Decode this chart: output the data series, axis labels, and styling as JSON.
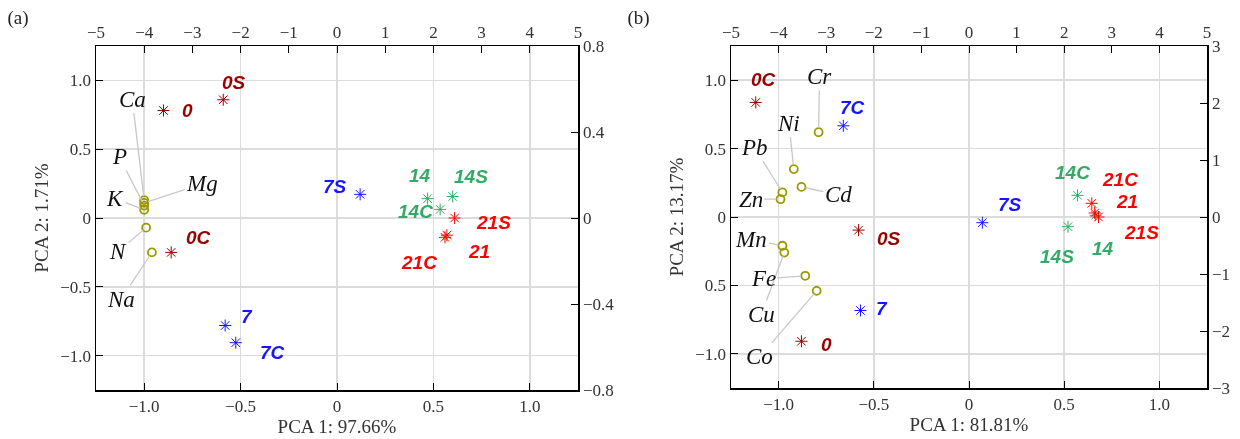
{
  "chart_data": [
    {
      "type": "scatter",
      "title": "(a)",
      "xlabel": "PCA 1: 97.66%",
      "ylabel": "PCA 2: 1.71%",
      "grid": true,
      "legend": false,
      "xlim": [
        -1.25,
        1.25
      ],
      "xticks": [
        {
          "value": -1,
          "label": "−1.0"
        },
        {
          "value": -0.5,
          "label": "−0.5"
        },
        {
          "value": 0,
          "label": "0"
        },
        {
          "value": 0.5,
          "label": "0.5"
        },
        {
          "value": 1,
          "label": "1.0"
        }
      ],
      "ylim": [
        -1.25,
        1.25
      ],
      "yticks": [
        {
          "value": -1,
          "label": "−1.0"
        },
        {
          "value": -0.5,
          "label": "−0.5"
        },
        {
          "value": 0,
          "label": "0"
        },
        {
          "value": 0.5,
          "label": "0.5"
        },
        {
          "value": 1,
          "label": "1.0"
        }
      ],
      "x2lim": [
        -5,
        5
      ],
      "x2ticks": [
        {
          "value": -5,
          "label": "−5"
        },
        {
          "value": -4,
          "label": "−4"
        },
        {
          "value": -3,
          "label": "−3"
        },
        {
          "value": -2,
          "label": "−2"
        },
        {
          "value": -1,
          "label": "−1"
        },
        0,
        1,
        2,
        3,
        4,
        5
      ],
      "y2lim": [
        -0.8,
        0.8
      ],
      "y2ticks": [
        {
          "value": -0.8,
          "label": "−0.8"
        },
        {
          "value": -0.4,
          "label": "−0.4"
        },
        0,
        0.4,
        0.8
      ],
      "series": [
        {
          "name": "Ca",
          "color": "#999900",
          "marker": "circle",
          "x": [
            -1.0
          ],
          "values": [
            0.13
          ]
        },
        {
          "name": "Mg",
          "color": "#999900",
          "marker": "circle",
          "x": [
            -1.0
          ],
          "values": [
            0.11
          ]
        },
        {
          "name": "P",
          "color": "#999900",
          "marker": "circle",
          "x": [
            -1.0
          ],
          "values": [
            0.09
          ]
        },
        {
          "name": "K",
          "color": "#999900",
          "marker": "circle",
          "x": [
            -1.0
          ],
          "values": [
            0.06
          ]
        },
        {
          "name": "N",
          "color": "#999900",
          "marker": "circle",
          "x": [
            -0.99
          ],
          "values": [
            -0.07
          ]
        },
        {
          "name": "Na",
          "color": "#999900",
          "marker": "circle",
          "x": [
            -0.96
          ],
          "values": [
            -0.25
          ]
        },
        {
          "name": "0",
          "color": "#990000",
          "marker": "cross",
          "axis": "y2",
          "x": [
            -0.9
          ],
          "values": [
            0.5
          ]
        },
        {
          "name": "0S",
          "color": "#990000",
          "marker": "cross",
          "axis": "y2",
          "x": [
            -0.59
          ],
          "values": [
            0.55
          ]
        },
        {
          "name": "0C",
          "color": "#990000",
          "marker": "cross",
          "axis": "y2",
          "x": [
            -0.86
          ],
          "values": [
            -0.16
          ]
        },
        {
          "name": "7",
          "color": "#1515ff",
          "marker": "cross",
          "axis": "y2",
          "x": [
            -0.58
          ],
          "values": [
            -0.5
          ]
        },
        {
          "name": "7C",
          "color": "#1515ff",
          "marker": "cross",
          "axis": "y2",
          "x": [
            -0.525
          ],
          "values": [
            -0.58
          ]
        },
        {
          "name": "7S",
          "color": "#1515ff",
          "marker": "cross",
          "axis": "y2",
          "x": [
            0.12
          ],
          "values": [
            0.11
          ]
        },
        {
          "name": "14",
          "color": "#33aa66",
          "marker": "cross",
          "axis": "y2",
          "x": [
            0.47
          ],
          "values": [
            0.09
          ]
        },
        {
          "name": "14S",
          "color": "#33aa66",
          "marker": "cross",
          "axis": "y2",
          "x": [
            0.6
          ],
          "values": [
            0.1
          ]
        },
        {
          "name": "14C",
          "color": "#33aa66",
          "marker": "cross",
          "axis": "y2",
          "x": [
            0.535
          ],
          "values": [
            0.04
          ]
        },
        {
          "name": "21S",
          "color": "#ff0000",
          "marker": "cross",
          "axis": "y2",
          "x": [
            0.61
          ],
          "values": [
            0.0
          ]
        },
        {
          "name": "21",
          "color": "#ff0000",
          "marker": "cross",
          "axis": "y2",
          "x": [
            0.57
          ],
          "values": [
            -0.08
          ]
        },
        {
          "name": "21C",
          "color": "#ff0000",
          "marker": "cross",
          "axis": "y2",
          "x": [
            0.56
          ],
          "values": [
            -0.09
          ]
        }
      ]
    },
    {
      "type": "scatter",
      "title": "(b)",
      "xlabel": "PCA 1: 81.81%",
      "ylabel": "PCA 2: 13.17%",
      "grid": true,
      "legend": false,
      "xlim": [
        -1.25,
        1.25
      ],
      "xticks": [
        {
          "value": -1,
          "label": "−1.0"
        },
        {
          "value": -0.5,
          "label": "−0.5"
        },
        {
          "value": 0,
          "label": "0"
        },
        {
          "value": 0.5,
          "label": "0.5"
        },
        {
          "value": 1,
          "label": "1.0"
        }
      ],
      "ylim": [
        -1.25,
        1.25
      ],
      "yticks": [
        {
          "value": -1,
          "label": "−1.0"
        },
        {
          "value": -0.5,
          "label": "0.5"
        },
        {
          "value": 0,
          "label": "0"
        },
        {
          "value": 0.5,
          "label": "0.5"
        },
        {
          "value": 1,
          "label": "1.0"
        }
      ],
      "x2lim": [
        -5,
        5
      ],
      "x2ticks": [
        {
          "value": -5,
          "label": "−5"
        },
        {
          "value": -4,
          "label": "−4"
        },
        {
          "value": -3,
          "label": "−3"
        },
        {
          "value": -2,
          "label": "−2"
        },
        {
          "value": -1,
          "label": "−1"
        },
        0,
        1,
        2,
        3,
        4,
        5
      ],
      "y2lim": [
        -3,
        3
      ],
      "y2ticks": [
        {
          "value": -3,
          "label": "−3"
        },
        {
          "value": -2,
          "label": "−2"
        },
        {
          "value": -1,
          "label": "−1"
        },
        0,
        1,
        2,
        3
      ],
      "series": [
        {
          "name": "Cr",
          "color": "#999900",
          "marker": "circle",
          "x": [
            -0.79
          ],
          "values": [
            0.62
          ]
        },
        {
          "name": "Ni",
          "color": "#999900",
          "marker": "circle",
          "x": [
            -0.92
          ],
          "values": [
            0.35
          ]
        },
        {
          "name": "Cd",
          "color": "#999900",
          "marker": "circle",
          "x": [
            -0.88
          ],
          "values": [
            0.22
          ]
        },
        {
          "name": "Pb",
          "color": "#999900",
          "marker": "circle",
          "x": [
            -0.98
          ],
          "values": [
            0.18
          ]
        },
        {
          "name": "Zn",
          "color": "#999900",
          "marker": "circle",
          "x": [
            -0.99
          ],
          "values": [
            0.13
          ]
        },
        {
          "name": "Mn",
          "color": "#999900",
          "marker": "circle",
          "x": [
            -0.98
          ],
          "values": [
            -0.21
          ]
        },
        {
          "name": "Cu",
          "color": "#999900",
          "marker": "circle",
          "x": [
            -0.97
          ],
          "values": [
            -0.26
          ]
        },
        {
          "name": "Fe",
          "color": "#999900",
          "marker": "circle",
          "x": [
            -0.86
          ],
          "values": [
            -0.43
          ]
        },
        {
          "name": "Co",
          "color": "#999900",
          "marker": "circle",
          "x": [
            -0.8
          ],
          "values": [
            -0.54
          ]
        },
        {
          "name": "0C",
          "color": "#990000",
          "marker": "cross",
          "axis": "y2",
          "x": [
            -1.12
          ],
          "values": [
            2.01
          ]
        },
        {
          "name": "0S",
          "color": "#990000",
          "marker": "cross",
          "axis": "y2",
          "x": [
            -0.58
          ],
          "values": [
            -0.23
          ]
        },
        {
          "name": "0",
          "color": "#990000",
          "marker": "cross",
          "axis": "y2",
          "x": [
            -0.88
          ],
          "values": [
            -2.18
          ]
        },
        {
          "name": "7C",
          "color": "#1515ff",
          "marker": "cross",
          "axis": "y2",
          "x": [
            -0.66
          ],
          "values": [
            1.6
          ]
        },
        {
          "name": "7",
          "color": "#1515ff",
          "marker": "cross",
          "axis": "y2",
          "x": [
            -0.57
          ],
          "values": [
            -1.64
          ]
        },
        {
          "name": "7S",
          "color": "#1515ff",
          "marker": "cross",
          "axis": "y2",
          "x": [
            0.07
          ],
          "values": [
            -0.1
          ]
        },
        {
          "name": "14S",
          "color": "#33aa66",
          "marker": "cross",
          "axis": "y2",
          "x": [
            0.52
          ],
          "values": [
            -0.17
          ]
        },
        {
          "name": "14C",
          "color": "#33aa66",
          "marker": "cross",
          "axis": "y2",
          "x": [
            0.57
          ],
          "values": [
            0.38
          ]
        },
        {
          "name": "14",
          "color": "#33aa66",
          "marker": "cross",
          "axis": "y2",
          "x": [
            0.665
          ],
          "values": [
            0.03
          ]
        },
        {
          "name": "21C",
          "color": "#ff0000",
          "marker": "cross",
          "axis": "y2",
          "x": [
            0.645
          ],
          "values": [
            0.24
          ]
        },
        {
          "name": "21",
          "color": "#ff0000",
          "marker": "cross",
          "axis": "y2",
          "x": [
            0.66
          ],
          "values": [
            0.07
          ]
        },
        {
          "name": "21S",
          "color": "#ff0000",
          "marker": "cross",
          "axis": "y2",
          "x": [
            0.68
          ],
          "values": [
            0.0
          ]
        }
      ]
    }
  ]
}
